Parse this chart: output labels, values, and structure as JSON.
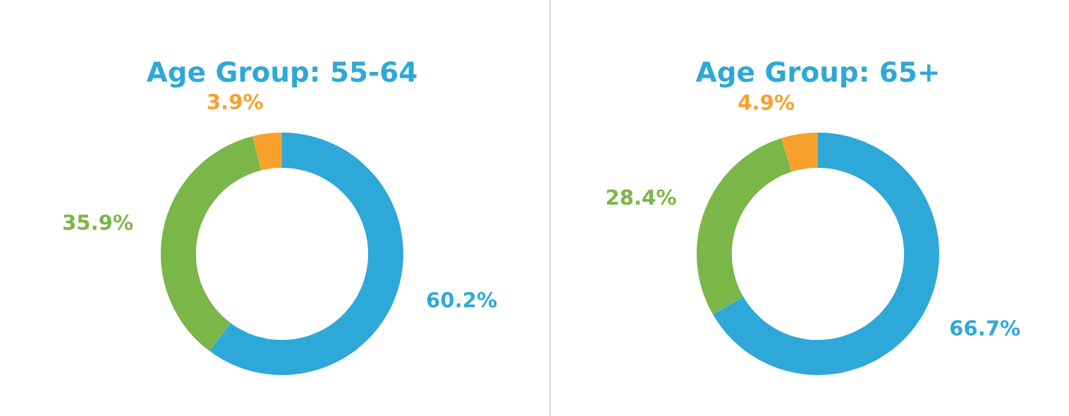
{
  "chart_data": [
    {
      "type": "donut",
      "title": "Age Group: 55-64",
      "categories": [
        null,
        null,
        null
      ],
      "values": [
        60.2,
        35.9,
        3.9
      ],
      "colors": [
        "#2ea8d8",
        "#7ab648",
        "#f7a02c"
      ],
      "value_labels": [
        "60.2%",
        "35.9%",
        "3.9%"
      ]
    },
    {
      "type": "donut",
      "title": "Age Group: 65+",
      "categories": [
        null,
        null,
        null
      ],
      "values": [
        66.7,
        28.4,
        4.9
      ],
      "colors": [
        "#2ea8d8",
        "#7ab648",
        "#f7a02c"
      ],
      "value_labels": [
        "66.7%",
        "28.4%",
        "4.9%"
      ]
    }
  ]
}
